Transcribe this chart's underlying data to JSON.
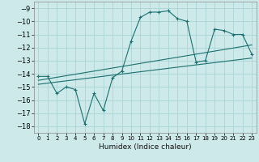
{
  "xlabel": "Humidex (Indice chaleur)",
  "ylabel": "",
  "background_color": "#cee9e9",
  "grid_color": "#aad4d4",
  "line_color": "#1a7070",
  "xlim": [
    -0.5,
    23.5
  ],
  "ylim": [
    -18.5,
    -8.5
  ],
  "xticks": [
    0,
    1,
    2,
    3,
    4,
    5,
    6,
    7,
    8,
    9,
    10,
    11,
    12,
    13,
    14,
    15,
    16,
    17,
    18,
    19,
    20,
    21,
    22,
    23
  ],
  "yticks": [
    -18,
    -17,
    -16,
    -15,
    -14,
    -13,
    -12,
    -11,
    -10,
    -9
  ],
  "main_x": [
    0,
    1,
    2,
    3,
    4,
    5,
    6,
    7,
    8,
    9,
    10,
    11,
    12,
    13,
    14,
    15,
    16,
    17,
    18,
    19,
    20,
    21,
    22,
    23
  ],
  "main_y": [
    -14.2,
    -14.2,
    -15.5,
    -15.0,
    -15.2,
    -17.8,
    -15.5,
    -16.8,
    -14.3,
    -13.8,
    -11.5,
    -9.7,
    -9.3,
    -9.3,
    -9.2,
    -9.8,
    -10.0,
    -13.1,
    -13.0,
    -10.6,
    -10.7,
    -11.0,
    -11.0,
    -12.5
  ],
  "line2_x": [
    0,
    23
  ],
  "line2_y": [
    -14.5,
    -11.8
  ],
  "line3_x": [
    0,
    23
  ],
  "line3_y": [
    -14.8,
    -12.8
  ]
}
